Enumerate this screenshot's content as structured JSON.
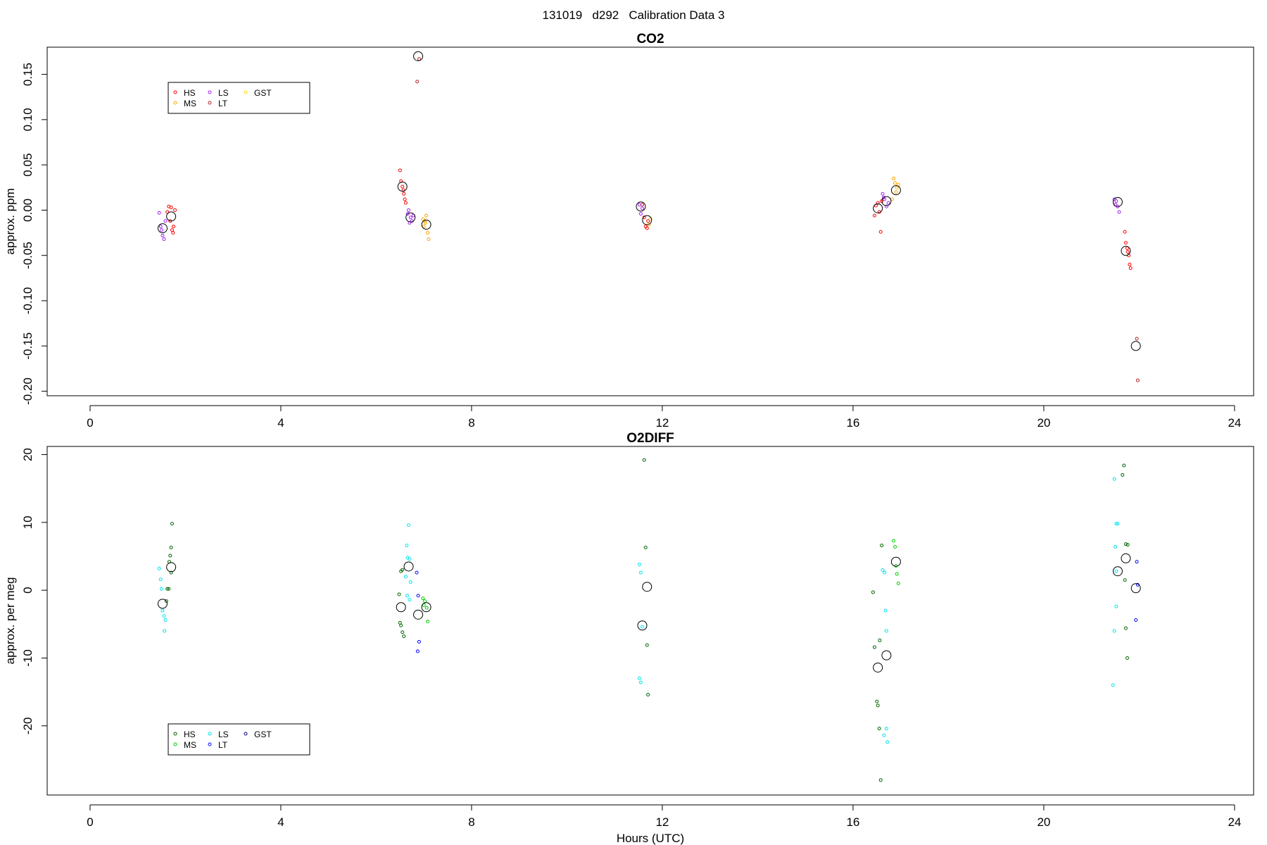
{
  "page_title": "131019   d292   Calibration Data 3",
  "chart_data": [
    {
      "type": "scatter",
      "title": "CO2",
      "xlabel": "",
      "ylabel": "approx. ppm",
      "xlim": [
        -0.9,
        24.4
      ],
      "ylim": [
        -0.205,
        0.18
      ],
      "x_ticks": [
        0,
        4,
        8,
        12,
        16,
        20,
        24
      ],
      "y_ticks": [
        -0.2,
        -0.15,
        -0.1,
        -0.05,
        0.0,
        0.05,
        0.1,
        0.15
      ],
      "y_tick_labels": [
        "-0.20",
        "-0.15",
        "-0.10",
        "-0.05",
        "0.00",
        "0.05",
        "0.10",
        "0.15"
      ],
      "legend_position": "top-left",
      "legend": [
        {
          "label": "HS",
          "color": "#ff0000"
        },
        {
          "label": "MS",
          "color": "#ffa500"
        },
        {
          "label": "LS",
          "color": "#a020f0"
        },
        {
          "label": "LT",
          "color": "#b22222"
        },
        {
          "label": "GST",
          "color": "#ffd700"
        }
      ],
      "series": [
        {
          "label": "HS",
          "color": "#ff0000",
          "points": [
            [
              1.65,
              0.004
            ],
            [
              1.7,
              0.003
            ],
            [
              1.75,
              -0.018
            ],
            [
              1.72,
              -0.022
            ],
            [
              1.68,
              -0.012
            ],
            [
              1.78,
              0.0
            ],
            [
              1.62,
              -0.002
            ],
            [
              1.74,
              -0.025
            ],
            [
              6.5,
              0.044
            ],
            [
              6.52,
              0.032
            ],
            [
              6.58,
              0.018
            ],
            [
              6.6,
              0.012
            ],
            [
              6.62,
              0.008
            ],
            [
              6.55,
              0.026
            ],
            [
              6.57,
              0.022
            ],
            [
              11.62,
              -0.008
            ],
            [
              11.65,
              -0.018
            ],
            [
              11.68,
              -0.02
            ],
            [
              11.7,
              -0.012
            ],
            [
              11.58,
              0.006
            ],
            [
              16.48,
              0.005
            ],
            [
              16.52,
              0.008
            ],
            [
              16.58,
              -0.024
            ],
            [
              16.55,
              -0.002
            ],
            [
              16.45,
              -0.006
            ],
            [
              16.6,
              0.01
            ],
            [
              21.7,
              -0.024
            ],
            [
              21.72,
              -0.036
            ],
            [
              21.75,
              -0.042
            ],
            [
              21.78,
              -0.05
            ],
            [
              21.8,
              -0.06
            ],
            [
              21.82,
              -0.064
            ],
            [
              21.76,
              -0.046
            ]
          ]
        },
        {
          "label": "MS",
          "color": "#ffa500",
          "points": [
            [
              6.98,
              -0.01
            ],
            [
              7.02,
              -0.012
            ],
            [
              7.05,
              -0.006
            ],
            [
              7.08,
              -0.025
            ],
            [
              7.1,
              -0.032
            ],
            [
              7.0,
              -0.018
            ],
            [
              7.03,
              -0.014
            ],
            [
              16.85,
              0.035
            ],
            [
              16.88,
              0.03
            ],
            [
              16.92,
              0.025
            ],
            [
              16.95,
              0.028
            ],
            [
              16.82,
              0.012
            ],
            [
              16.9,
              0.02
            ],
            [
              11.72,
              -0.016
            ],
            [
              11.75,
              -0.01
            ]
          ]
        },
        {
          "label": "LS",
          "color": "#a020f0",
          "points": [
            [
              1.45,
              -0.003
            ],
            [
              1.48,
              -0.018
            ],
            [
              1.52,
              -0.028
            ],
            [
              1.55,
              -0.032
            ],
            [
              1.5,
              -0.022
            ],
            [
              1.58,
              -0.012
            ],
            [
              6.68,
              0.0
            ],
            [
              6.72,
              -0.008
            ],
            [
              6.75,
              -0.012
            ],
            [
              6.78,
              -0.006
            ],
            [
              6.7,
              -0.014
            ],
            [
              6.66,
              -0.004
            ],
            [
              11.52,
              0.006
            ],
            [
              11.55,
              -0.004
            ],
            [
              11.58,
              0.002
            ],
            [
              16.62,
              0.018
            ],
            [
              16.66,
              0.012
            ],
            [
              16.7,
              0.004
            ],
            [
              16.74,
              0.008
            ],
            [
              16.64,
              0.014
            ],
            [
              21.48,
              0.012
            ],
            [
              21.52,
              0.01
            ],
            [
              21.55,
              0.004
            ],
            [
              21.58,
              -0.002
            ],
            [
              21.5,
              0.006
            ]
          ]
        },
        {
          "label": "LT",
          "color": "#b22222",
          "points": [
            [
              6.86,
              0.142
            ],
            [
              6.9,
              0.167
            ],
            [
              21.95,
              -0.142
            ],
            [
              21.97,
              -0.188
            ]
          ]
        },
        {
          "label": "GST",
          "color": "#ffd700",
          "points": []
        },
        {
          "label": "mean",
          "color": "#000000",
          "mean": true,
          "points": [
            [
              1.52,
              -0.02
            ],
            [
              1.7,
              -0.007
            ],
            [
              6.55,
              0.026
            ],
            [
              6.72,
              -0.008
            ],
            [
              6.88,
              0.17
            ],
            [
              7.05,
              -0.016
            ],
            [
              11.55,
              0.004
            ],
            [
              11.68,
              -0.011
            ],
            [
              16.52,
              0.002
            ],
            [
              16.7,
              0.01
            ],
            [
              16.9,
              0.022
            ],
            [
              21.55,
              0.009
            ],
            [
              21.72,
              -0.045
            ],
            [
              21.93,
              -0.15
            ]
          ]
        }
      ]
    },
    {
      "type": "scatter",
      "title": "O2DIFF",
      "xlabel": "Hours (UTC)",
      "ylabel": "approx. per meg",
      "xlim": [
        -0.9,
        24.4
      ],
      "ylim": [
        -30.2,
        21.2
      ],
      "x_ticks": [
        0,
        4,
        8,
        12,
        16,
        20,
        24
      ],
      "y_ticks": [
        -20,
        -10,
        0,
        10,
        20
      ],
      "y_tick_labels": [
        "-20",
        "-10",
        "0",
        "10",
        "20"
      ],
      "legend_position": "bottom-left",
      "legend": [
        {
          "label": "HS",
          "color": "#006400"
        },
        {
          "label": "MS",
          "color": "#00cd00"
        },
        {
          "label": "LS",
          "color": "#00e5ee"
        },
        {
          "label": "LT",
          "color": "#0000ff"
        },
        {
          "label": "GST",
          "color": "#00008b"
        }
      ],
      "series": [
        {
          "label": "HS",
          "color": "#006400",
          "points": [
            [
              1.72,
              9.8
            ],
            [
              1.7,
              6.3
            ],
            [
              1.68,
              5.1
            ],
            [
              1.66,
              4.2
            ],
            [
              1.62,
              0.2
            ],
            [
              1.65,
              0.2
            ],
            [
              1.6,
              -1.6
            ],
            [
              1.7,
              2.6
            ],
            [
              6.48,
              -0.6
            ],
            [
              6.5,
              -4.8
            ],
            [
              6.52,
              -5.2
            ],
            [
              6.55,
              -6.2
            ],
            [
              6.58,
              -6.8
            ],
            [
              6.52,
              2.8
            ],
            [
              6.55,
              3.0
            ],
            [
              11.62,
              19.2
            ],
            [
              11.65,
              6.3
            ],
            [
              11.68,
              -8.1
            ],
            [
              11.7,
              -15.4
            ],
            [
              16.42,
              -0.3
            ],
            [
              16.45,
              -8.4
            ],
            [
              16.5,
              -16.4
            ],
            [
              16.52,
              -17.0
            ],
            [
              16.55,
              -20.4
            ],
            [
              16.58,
              -28.0
            ],
            [
              16.56,
              -7.4
            ],
            [
              16.6,
              6.6
            ],
            [
              21.68,
              18.4
            ],
            [
              21.65,
              17.0
            ],
            [
              21.72,
              6.8
            ],
            [
              21.76,
              6.7
            ],
            [
              21.7,
              1.5
            ],
            [
              21.72,
              -5.6
            ],
            [
              21.75,
              -10.0
            ]
          ]
        },
        {
          "label": "MS",
          "color": "#00cd00",
          "points": [
            [
              6.98,
              -1.2
            ],
            [
              7.02,
              -1.6
            ],
            [
              7.06,
              -2.6
            ],
            [
              7.08,
              -4.6
            ],
            [
              7.0,
              -2.2
            ],
            [
              16.85,
              7.3
            ],
            [
              16.88,
              6.4
            ],
            [
              16.92,
              2.4
            ],
            [
              16.95,
              1.0
            ],
            [
              16.9,
              3.6
            ]
          ]
        },
        {
          "label": "LS",
          "color": "#00e5ee",
          "points": [
            [
              1.45,
              3.2
            ],
            [
              1.48,
              1.6
            ],
            [
              1.5,
              0.2
            ],
            [
              1.52,
              -3.0
            ],
            [
              1.55,
              -3.8
            ],
            [
              1.58,
              -4.4
            ],
            [
              1.56,
              -6.0
            ],
            [
              6.68,
              9.6
            ],
            [
              6.64,
              6.6
            ],
            [
              6.66,
              4.8
            ],
            [
              6.7,
              4.6
            ],
            [
              6.62,
              2.0
            ],
            [
              6.72,
              1.2
            ],
            [
              6.65,
              -0.8
            ],
            [
              6.7,
              -1.4
            ],
            [
              11.52,
              3.8
            ],
            [
              11.55,
              2.6
            ],
            [
              11.58,
              -5.4
            ],
            [
              11.52,
              -13.0
            ],
            [
              11.55,
              -13.6
            ],
            [
              16.62,
              3.0
            ],
            [
              16.66,
              2.6
            ],
            [
              16.68,
              -3.0
            ],
            [
              16.7,
              -6.0
            ],
            [
              16.65,
              -21.4
            ],
            [
              16.7,
              -20.4
            ],
            [
              16.72,
              -22.4
            ],
            [
              21.48,
              16.4
            ],
            [
              21.52,
              9.8
            ],
            [
              21.55,
              9.8
            ],
            [
              21.5,
              6.4
            ],
            [
              21.52,
              -2.4
            ],
            [
              21.48,
              -6.0
            ],
            [
              21.45,
              -14.0
            ],
            [
              21.52,
              2.8
            ]
          ]
        },
        {
          "label": "LT",
          "color": "#0000ff",
          "points": [
            [
              6.85,
              2.6
            ],
            [
              6.88,
              -0.8
            ],
            [
              6.9,
              -7.6
            ],
            [
              6.87,
              -9.0
            ],
            [
              21.95,
              4.2
            ],
            [
              21.97,
              0.8
            ],
            [
              21.93,
              -4.4
            ]
          ]
        },
        {
          "label": "GST",
          "color": "#00008b",
          "points": []
        },
        {
          "label": "mean",
          "color": "#000000",
          "mean": true,
          "points": [
            [
              1.52,
              -2.0
            ],
            [
              1.7,
              3.4
            ],
            [
              6.52,
              -2.5
            ],
            [
              6.68,
              3.5
            ],
            [
              6.88,
              -3.6
            ],
            [
              7.05,
              -2.5
            ],
            [
              11.58,
              -5.2
            ],
            [
              11.68,
              0.5
            ],
            [
              16.52,
              -11.4
            ],
            [
              16.7,
              -9.6
            ],
            [
              16.9,
              4.2
            ],
            [
              21.55,
              2.8
            ],
            [
              21.72,
              4.7
            ],
            [
              21.93,
              0.3
            ]
          ]
        }
      ]
    }
  ]
}
